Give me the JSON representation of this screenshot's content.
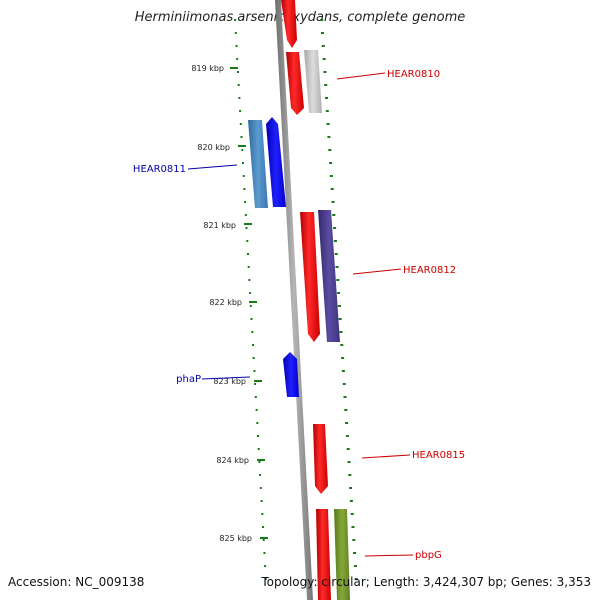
{
  "title": "Herminiimonas arsenicoxydans, complete genome",
  "footer": {
    "accession": "Accession: NC_009138",
    "topology": "Topology: circular; Length: 3,424,307 bp; Genes: 3,353"
  },
  "kbp_labels": [
    "819 kbp",
    "820 kbp",
    "821 kbp",
    "822 kbp",
    "823 kbp",
    "824 kbp",
    "825 kbp"
  ],
  "gene_labels": [
    {
      "id": "hear0810",
      "text": "HEAR0810",
      "color": "#cc0000"
    },
    {
      "id": "hear0811",
      "text": "HEAR0811",
      "color": "#0000aa"
    },
    {
      "id": "hear0812",
      "text": "HEAR0812",
      "color": "#cc0000"
    },
    {
      "id": "phap",
      "text": "phaP",
      "color": "#0000aa"
    },
    {
      "id": "hear0815",
      "text": "HEAR0815",
      "color": "#cc0000"
    },
    {
      "id": "pbpg",
      "text": "pbpG",
      "color": "#cc0000"
    }
  ],
  "colors": {
    "backbone": "#8a8a8a",
    "tick": "#1a7a1a",
    "forward_gene": "#ff0000",
    "reverse_gene": "#0000ff",
    "steelblue_gene": "#4682b4",
    "gray_gene": "#bdbdbd",
    "purple_gene": "#483d8b",
    "olive_gene": "#6b8e23"
  }
}
